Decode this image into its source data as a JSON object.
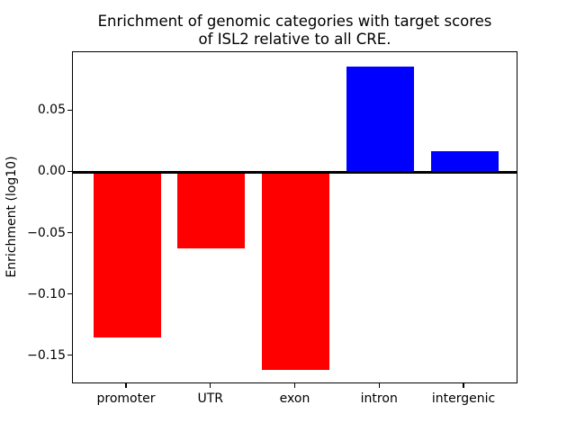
{
  "chart_data": {
    "type": "bar",
    "title": "Enrichment of genomic categories with target scores of ISL2 relative to all CRE.",
    "title_line1": "Enrichment of genomic categories with target scores",
    "title_line2": "of ISL2 relative to all CRE.",
    "xlabel": "",
    "ylabel": "Enrichment (log10)",
    "categories": [
      "promoter",
      "UTR",
      "exon",
      "intron",
      "intergenic"
    ],
    "values": [
      -0.135,
      -0.062,
      -0.161,
      0.086,
      0.017
    ],
    "bar_colors": [
      "#ff0000",
      "#ff0000",
      "#ff0000",
      "#0000ff",
      "#0000ff"
    ],
    "negative_color": "#ff0000",
    "positive_color": "#0000ff",
    "ylim": [
      -0.173,
      0.098
    ],
    "xlim": [
      -0.64,
      4.64
    ],
    "bar_width_units": 0.8,
    "yticks": [
      {
        "label": "0.05",
        "value": 0.05
      },
      {
        "label": "0.00",
        "value": 0.0
      },
      {
        "label": "−0.05",
        "value": -0.05
      },
      {
        "label": "−0.10",
        "value": -0.1
      },
      {
        "label": "−0.15",
        "value": -0.15
      }
    ],
    "grid": false,
    "legend": null,
    "zero_line": true
  }
}
